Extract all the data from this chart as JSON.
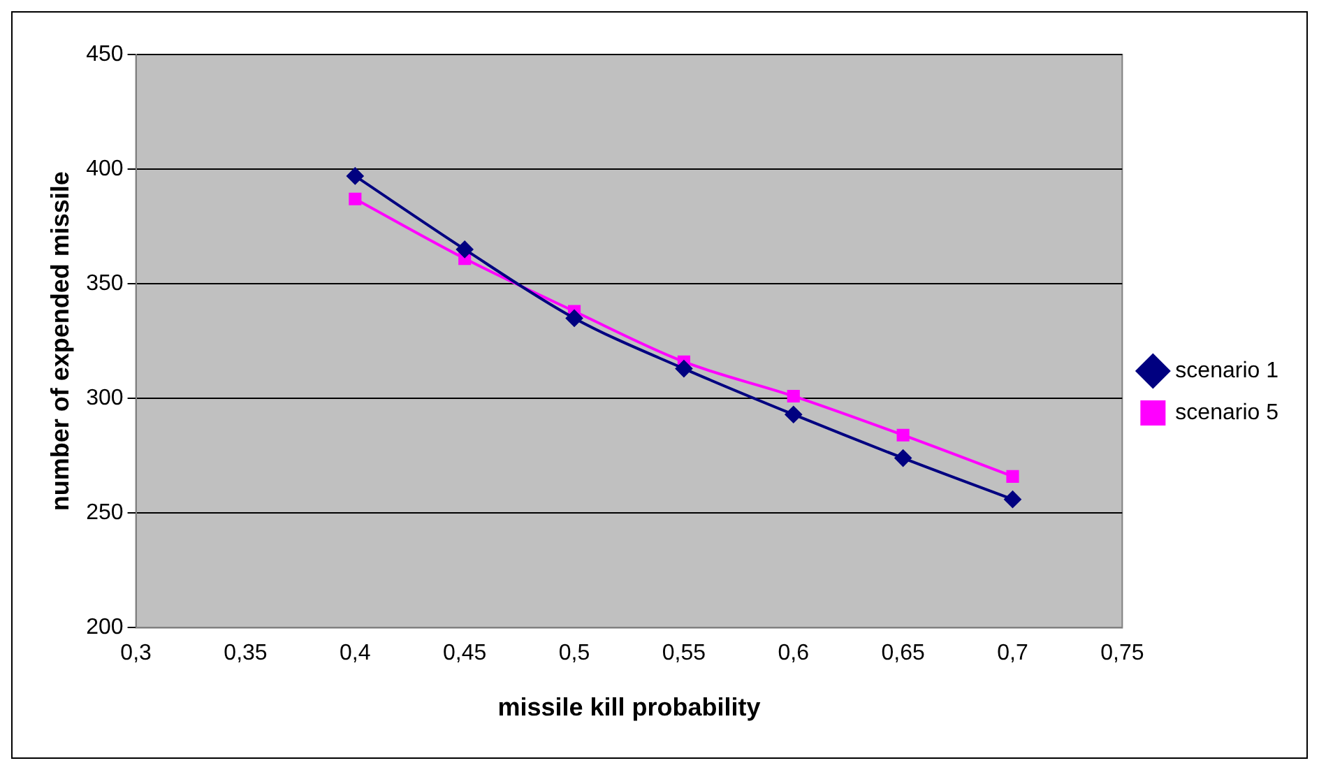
{
  "chart_data": {
    "type": "line",
    "xlabel": "missile kill probability",
    "ylabel": "number of expended missile",
    "x": [
      0.4,
      0.45,
      0.5,
      0.55,
      0.6,
      0.65,
      0.7
    ],
    "series": [
      {
        "name": "scenario 1",
        "color": "#000080",
        "marker": "diamond",
        "values": [
          397,
          365,
          335,
          313,
          293,
          274,
          256
        ]
      },
      {
        "name": "scenario 5",
        "color": "#ff00ff",
        "marker": "square",
        "values": [
          387,
          361,
          338,
          316,
          301,
          284,
          266
        ]
      }
    ],
    "xlim": [
      0.3,
      0.75
    ],
    "xticks": [
      {
        "value": 0.3,
        "label": "0,3"
      },
      {
        "value": 0.35,
        "label": "0,35"
      },
      {
        "value": 0.4,
        "label": "0,4"
      },
      {
        "value": 0.45,
        "label": "0,45"
      },
      {
        "value": 0.5,
        "label": "0,5"
      },
      {
        "value": 0.55,
        "label": "0,55"
      },
      {
        "value": 0.6,
        "label": "0,6"
      },
      {
        "value": 0.65,
        "label": "0,65"
      },
      {
        "value": 0.7,
        "label": "0,7"
      },
      {
        "value": 0.75,
        "label": "0,75"
      }
    ],
    "ylim": [
      200,
      450
    ],
    "yticks": [
      200,
      250,
      300,
      350,
      400,
      450
    ],
    "grid": "y",
    "legend": "right",
    "line_style": "solid"
  }
}
